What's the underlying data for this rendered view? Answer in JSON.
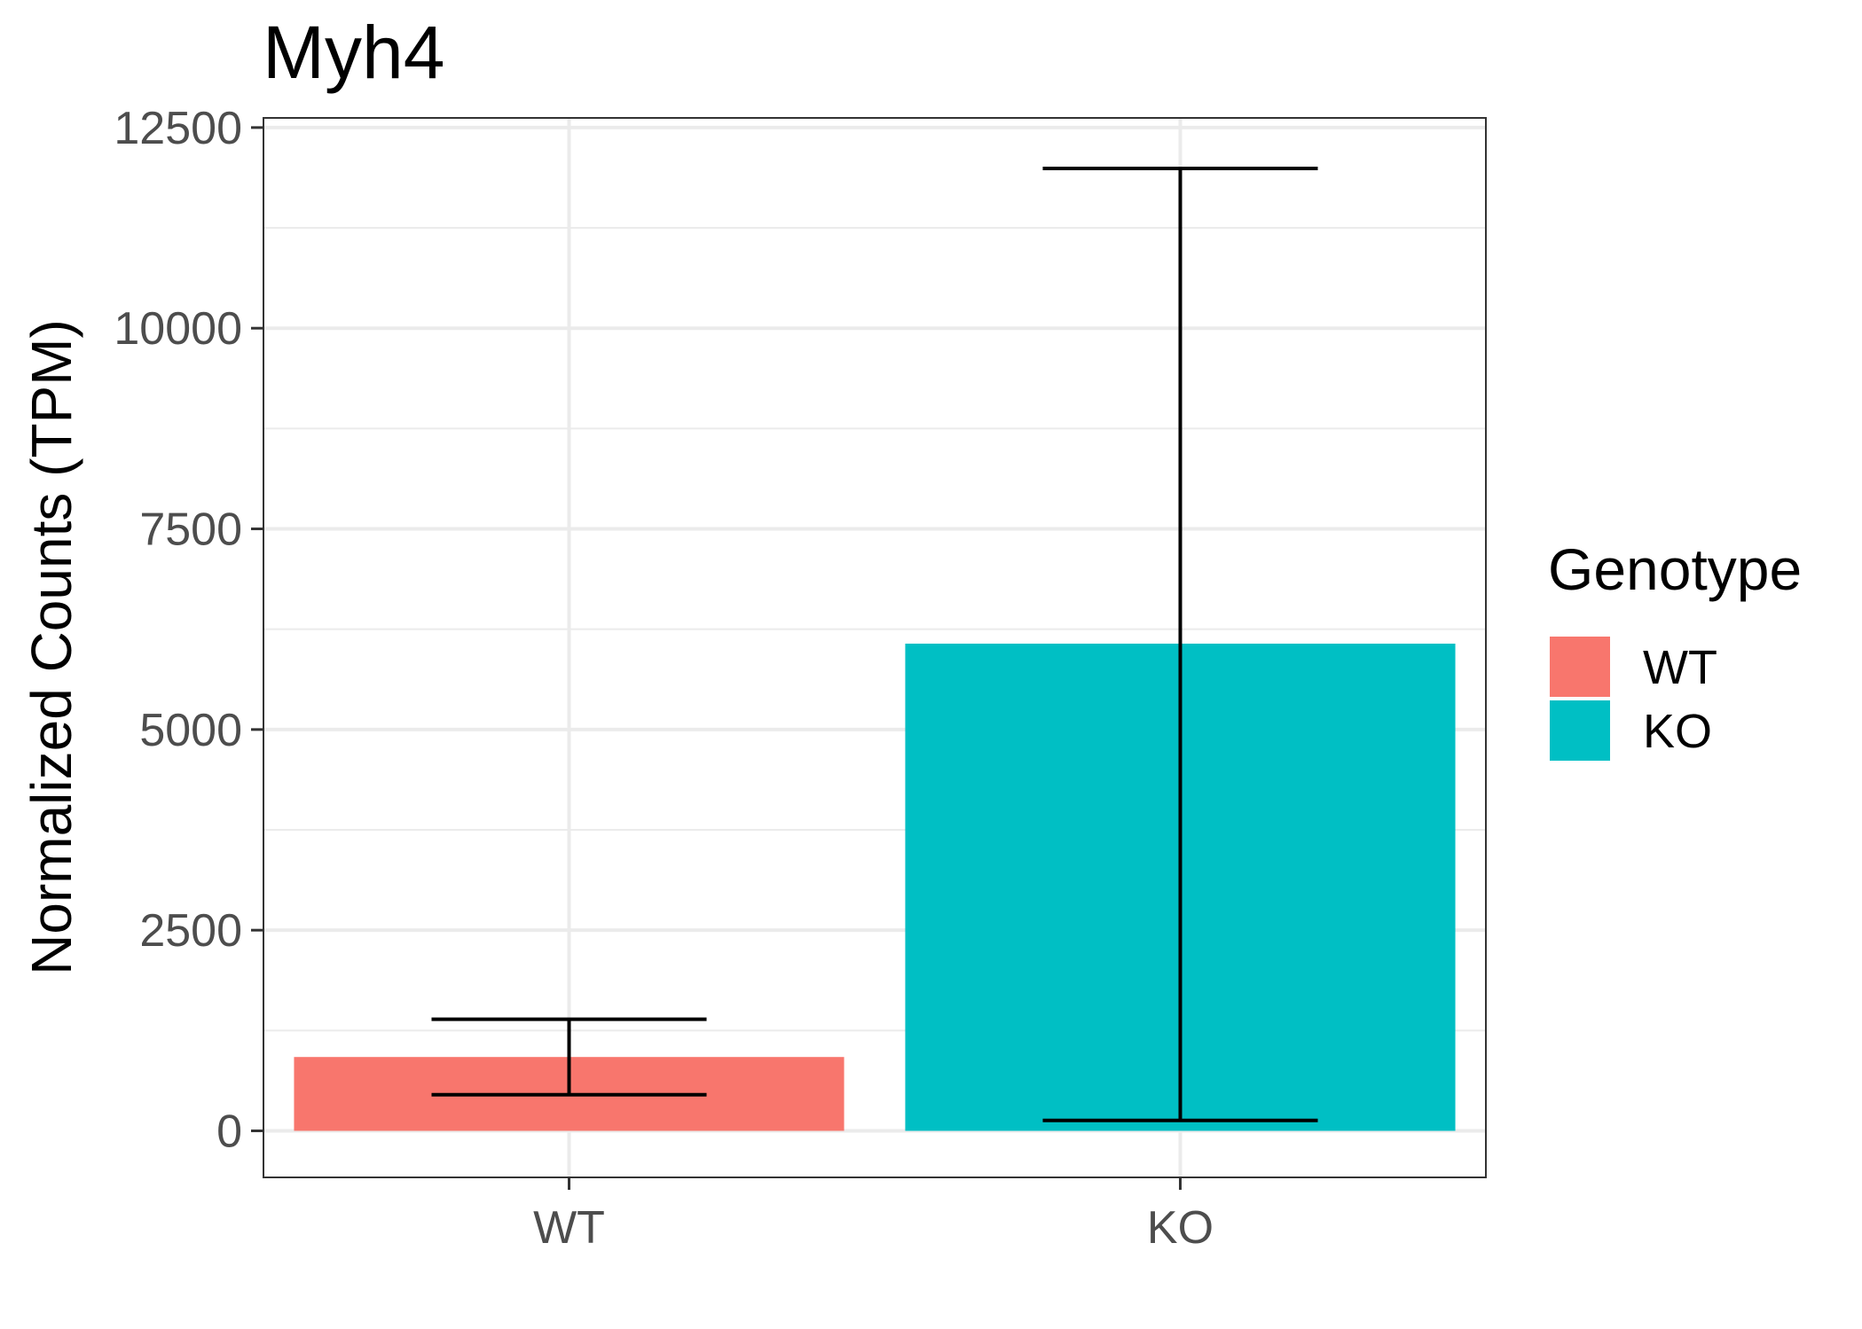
{
  "chart_data": {
    "type": "bar",
    "title": "Myh4",
    "xlabel": "",
    "ylabel": "Normalized Counts (TPM)",
    "categories": [
      "WT",
      "KO"
    ],
    "values": [
      920,
      6070
    ],
    "error_low": [
      450,
      130
    ],
    "error_high": [
      1390,
      11990
    ],
    "colors": [
      "#F8766D",
      "#00BFC4"
    ],
    "ylim": [
      -580,
      12620
    ],
    "yticks": [
      0,
      2500,
      5000,
      7500,
      10000,
      12500
    ],
    "ytick_labels": [
      "0",
      "2500",
      "5000",
      "7500",
      "10000",
      "12500"
    ],
    "grid": true,
    "legend": {
      "title": "Genotype",
      "placement": "right",
      "entries": [
        {
          "label": "WT",
          "color": "#F8766D"
        },
        {
          "label": "KO",
          "color": "#00BFC4"
        }
      ]
    }
  }
}
